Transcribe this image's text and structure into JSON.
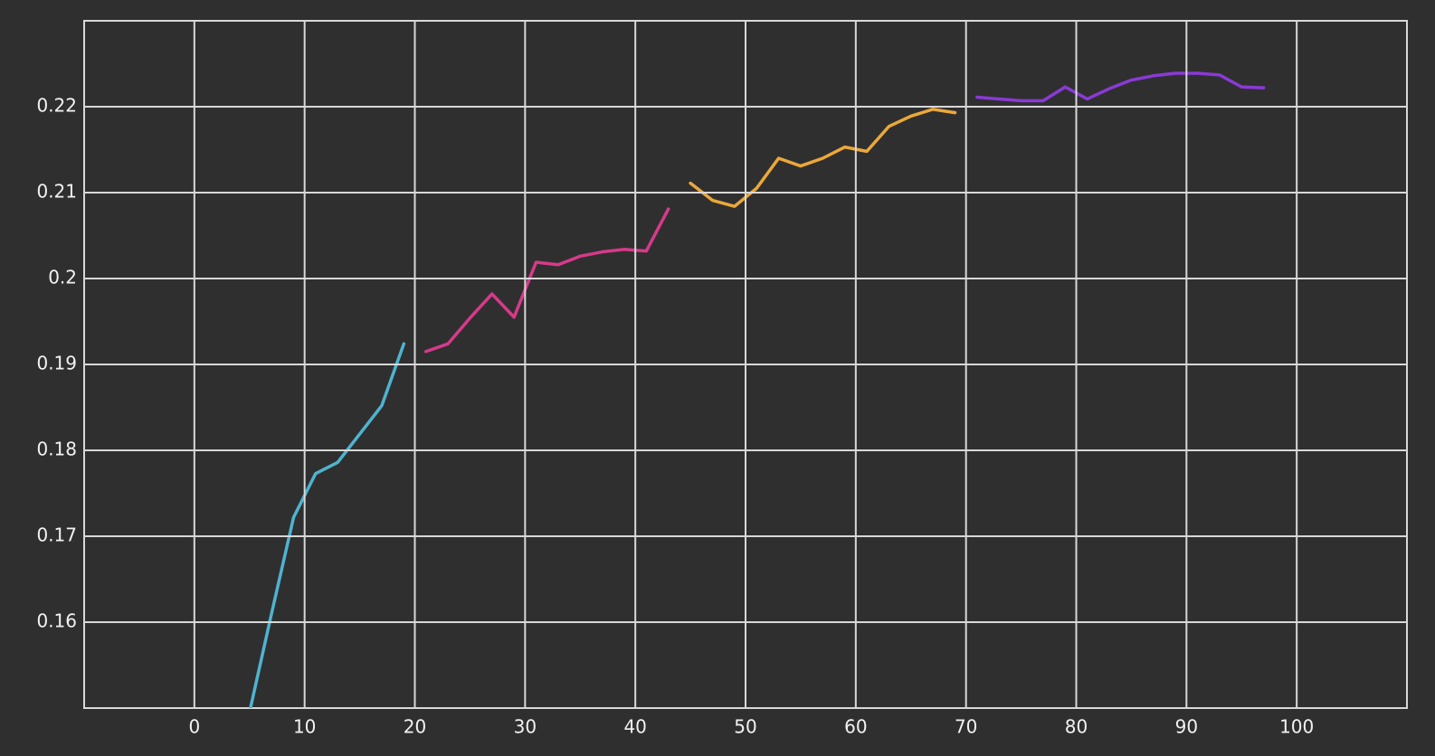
{
  "chart_data": {
    "type": "line",
    "xlim": [
      -10,
      110
    ],
    "xticks": [
      0,
      10,
      20,
      30,
      40,
      50,
      60,
      70,
      80,
      90,
      100
    ],
    "ylim": [
      0.15,
      0.23
    ],
    "yticks": [
      0.16,
      0.17,
      0.18,
      0.19,
      0.2,
      0.21,
      0.22
    ],
    "grid": true,
    "series": [
      {
        "color": "#4fb3cf",
        "x": [
          5,
          7,
          9,
          11,
          13,
          15,
          17,
          19
        ],
        "values": [
          0.1495,
          0.161,
          0.1722,
          0.1773,
          0.1786,
          0.1819,
          0.1852,
          0.1924
        ]
      },
      {
        "color": "#d63a8a",
        "x": [
          21,
          23,
          25,
          27,
          29,
          31,
          33,
          35,
          37,
          39,
          41,
          43
        ],
        "values": [
          0.1915,
          0.1924,
          0.1954,
          0.1982,
          0.1955,
          0.2019,
          0.2016,
          0.2026,
          0.2031,
          0.2034,
          0.2032,
          0.2081
        ]
      },
      {
        "color": "#eba83a",
        "x": [
          45,
          47,
          49,
          51,
          53,
          55,
          57,
          59,
          61,
          63,
          65,
          67,
          69
        ],
        "values": [
          0.2111,
          0.2091,
          0.2084,
          0.2105,
          0.214,
          0.2131,
          0.214,
          0.2153,
          0.2148,
          0.2177,
          0.2189,
          0.2197,
          0.2193
        ]
      },
      {
        "color": "#8a3ad6",
        "x": [
          71,
          73,
          75,
          77,
          79,
          81,
          83,
          85,
          87,
          89,
          91,
          93,
          95,
          97
        ],
        "values": [
          0.2211,
          0.2209,
          0.2207,
          0.2207,
          0.2223,
          0.2209,
          0.2221,
          0.2231,
          0.2236,
          0.2239,
          0.2239,
          0.2237,
          0.2223,
          0.2222
        ]
      }
    ]
  }
}
